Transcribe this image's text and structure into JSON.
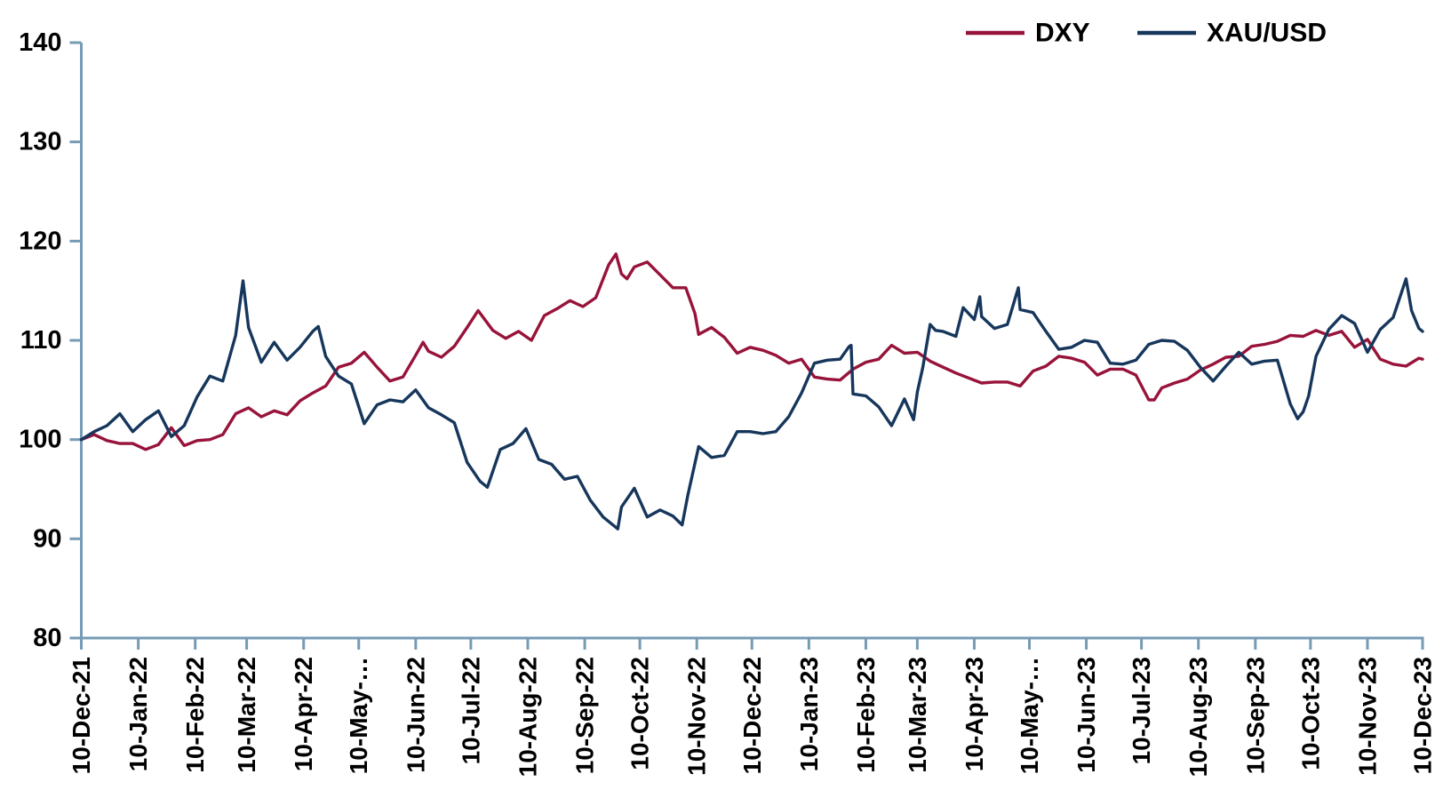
{
  "chart_data": {
    "type": "line",
    "title": "",
    "xlabel": "",
    "ylabel": "",
    "grid": false,
    "legend_position": "top-right",
    "axis_color": "#769BB5",
    "text_color": "#000000",
    "background_color": "#FFFFFF",
    "y_axis": {
      "ylim": [
        80,
        140
      ],
      "ticks": [
        80,
        90,
        100,
        110,
        120,
        130,
        140
      ]
    },
    "x_axis": {
      "unit": "days since 10-Dec-21",
      "range_days": [
        0,
        730
      ],
      "tick_days": [
        0,
        31,
        62,
        90,
        121,
        151,
        182,
        212,
        243,
        274,
        304,
        335,
        365,
        396,
        427,
        455,
        486,
        516,
        547,
        577,
        608,
        639,
        669,
        700,
        730
      ],
      "tick_labels": [
        "10-Dec-21",
        "10-Jan-22",
        "10-Feb-22",
        "10-Mar-22",
        "10-Apr-22",
        "10-May-…",
        "10-Jun-22",
        "10-Jul-22",
        "10-Aug-22",
        "10-Sep-22",
        "10-Oct-22",
        "10-Nov-22",
        "10-Dec-22",
        "10-Jan-23",
        "10-Feb-23",
        "10-Mar-23",
        "10-Apr-23",
        "10-May-…",
        "10-Jun-23",
        "10-Jul-23",
        "10-Aug-23",
        "10-Sep-23",
        "10-Oct-23",
        "10-Nov-23",
        "10-Dec-23"
      ]
    },
    "series": [
      {
        "name": "DXY",
        "color": "#98133A",
        "points": [
          [
            0,
            100.0
          ],
          [
            7,
            100.5
          ],
          [
            14,
            99.9
          ],
          [
            21,
            99.6
          ],
          [
            28,
            99.6
          ],
          [
            35,
            99.0
          ],
          [
            42,
            99.5
          ],
          [
            49,
            101.2
          ],
          [
            56,
            99.4
          ],
          [
            63,
            99.9
          ],
          [
            70,
            100.0
          ],
          [
            77,
            100.5
          ],
          [
            84,
            102.6
          ],
          [
            91,
            103.2
          ],
          [
            98,
            102.3
          ],
          [
            105,
            102.9
          ],
          [
            112,
            102.5
          ],
          [
            119,
            103.9
          ],
          [
            126,
            104.7
          ],
          [
            133,
            105.4
          ],
          [
            140,
            107.3
          ],
          [
            147,
            107.7
          ],
          [
            154,
            108.8
          ],
          [
            161,
            107.3
          ],
          [
            168,
            105.9
          ],
          [
            175,
            106.3
          ],
          [
            182,
            108.5
          ],
          [
            186,
            109.8
          ],
          [
            189,
            108.9
          ],
          [
            196,
            108.3
          ],
          [
            203,
            109.4
          ],
          [
            210,
            111.3
          ],
          [
            216,
            113.0
          ],
          [
            224,
            111.0
          ],
          [
            231,
            110.2
          ],
          [
            238,
            110.9
          ],
          [
            245,
            110.0
          ],
          [
            252,
            112.5
          ],
          [
            259,
            113.2
          ],
          [
            266,
            114.0
          ],
          [
            273,
            113.4
          ],
          [
            280,
            114.3
          ],
          [
            287,
            117.6
          ],
          [
            291,
            118.7
          ],
          [
            294,
            116.7
          ],
          [
            297,
            116.2
          ],
          [
            301,
            117.4
          ],
          [
            308,
            117.9
          ],
          [
            315,
            116.6
          ],
          [
            322,
            115.3
          ],
          [
            329,
            115.3
          ],
          [
            334,
            112.7
          ],
          [
            336,
            110.6
          ],
          [
            343,
            111.3
          ],
          [
            350,
            110.3
          ],
          [
            357,
            108.7
          ],
          [
            364,
            109.3
          ],
          [
            371,
            109.0
          ],
          [
            378,
            108.5
          ],
          [
            385,
            107.7
          ],
          [
            392,
            108.1
          ],
          [
            399,
            106.3
          ],
          [
            406,
            106.1
          ],
          [
            413,
            106.0
          ],
          [
            420,
            107.1
          ],
          [
            427,
            107.8
          ],
          [
            434,
            108.1
          ],
          [
            441,
            109.5
          ],
          [
            448,
            108.7
          ],
          [
            455,
            108.8
          ],
          [
            462,
            107.9
          ],
          [
            469,
            107.3
          ],
          [
            476,
            106.7
          ],
          [
            483,
            106.2
          ],
          [
            490,
            105.7
          ],
          [
            497,
            105.8
          ],
          [
            504,
            105.8
          ],
          [
            511,
            105.4
          ],
          [
            518,
            106.9
          ],
          [
            525,
            107.4
          ],
          [
            532,
            108.4
          ],
          [
            539,
            108.2
          ],
          [
            546,
            107.8
          ],
          [
            553,
            106.5
          ],
          [
            560,
            107.1
          ],
          [
            567,
            107.1
          ],
          [
            574,
            106.5
          ],
          [
            581,
            104.0
          ],
          [
            584,
            104.0
          ],
          [
            588,
            105.2
          ],
          [
            595,
            105.7
          ],
          [
            602,
            106.1
          ],
          [
            609,
            107.0
          ],
          [
            616,
            107.6
          ],
          [
            623,
            108.3
          ],
          [
            630,
            108.4
          ],
          [
            637,
            109.4
          ],
          [
            644,
            109.6
          ],
          [
            651,
            109.9
          ],
          [
            658,
            110.5
          ],
          [
            665,
            110.4
          ],
          [
            672,
            111.0
          ],
          [
            679,
            110.5
          ],
          [
            686,
            110.9
          ],
          [
            693,
            109.3
          ],
          [
            700,
            110.1
          ],
          [
            707,
            108.1
          ],
          [
            714,
            107.6
          ],
          [
            721,
            107.4
          ],
          [
            728,
            108.2
          ],
          [
            730,
            108.1
          ]
        ]
      },
      {
        "name": "XAU/USD",
        "color": "#16365C",
        "points": [
          [
            0,
            100.0
          ],
          [
            7,
            100.8
          ],
          [
            14,
            101.4
          ],
          [
            21,
            102.6
          ],
          [
            28,
            100.8
          ],
          [
            35,
            102.0
          ],
          [
            42,
            102.9
          ],
          [
            49,
            100.3
          ],
          [
            56,
            101.4
          ],
          [
            63,
            104.3
          ],
          [
            70,
            106.4
          ],
          [
            77,
            105.9
          ],
          [
            84,
            110.5
          ],
          [
            88,
            116.0
          ],
          [
            91,
            111.3
          ],
          [
            98,
            107.8
          ],
          [
            105,
            109.8
          ],
          [
            112,
            108.0
          ],
          [
            119,
            109.3
          ],
          [
            126,
            110.9
          ],
          [
            129,
            111.4
          ],
          [
            133,
            108.4
          ],
          [
            140,
            106.4
          ],
          [
            147,
            105.6
          ],
          [
            154,
            101.6
          ],
          [
            161,
            103.5
          ],
          [
            168,
            104.0
          ],
          [
            175,
            103.8
          ],
          [
            182,
            105.0
          ],
          [
            189,
            103.2
          ],
          [
            196,
            102.5
          ],
          [
            203,
            101.7
          ],
          [
            210,
            97.7
          ],
          [
            217,
            95.8
          ],
          [
            221,
            95.2
          ],
          [
            228,
            99.0
          ],
          [
            235,
            99.6
          ],
          [
            242,
            101.1
          ],
          [
            249,
            98.0
          ],
          [
            256,
            97.5
          ],
          [
            263,
            96.0
          ],
          [
            270,
            96.3
          ],
          [
            277,
            93.9
          ],
          [
            284,
            92.2
          ],
          [
            292,
            91.0
          ],
          [
            294,
            93.2
          ],
          [
            301,
            95.1
          ],
          [
            308,
            92.2
          ],
          [
            315,
            92.9
          ],
          [
            322,
            92.3
          ],
          [
            327,
            91.4
          ],
          [
            330,
            94.3
          ],
          [
            336,
            99.3
          ],
          [
            343,
            98.2
          ],
          [
            350,
            98.4
          ],
          [
            357,
            100.8
          ],
          [
            364,
            100.8
          ],
          [
            371,
            100.6
          ],
          [
            378,
            100.8
          ],
          [
            385,
            102.3
          ],
          [
            392,
            104.7
          ],
          [
            399,
            107.7
          ],
          [
            406,
            108.0
          ],
          [
            413,
            108.1
          ],
          [
            418,
            109.4
          ],
          [
            419,
            109.5
          ],
          [
            420,
            104.6
          ],
          [
            427,
            104.4
          ],
          [
            434,
            103.3
          ],
          [
            441,
            101.4
          ],
          [
            448,
            104.1
          ],
          [
            453,
            102.0
          ],
          [
            455,
            104.8
          ],
          [
            458,
            107.3
          ],
          [
            462,
            111.6
          ],
          [
            465,
            111.0
          ],
          [
            469,
            110.9
          ],
          [
            476,
            110.4
          ],
          [
            480,
            113.3
          ],
          [
            486,
            112.1
          ],
          [
            489,
            114.4
          ],
          [
            490,
            112.4
          ],
          [
            497,
            111.2
          ],
          [
            504,
            111.6
          ],
          [
            510,
            115.3
          ],
          [
            511,
            113.1
          ],
          [
            518,
            112.8
          ],
          [
            525,
            110.9
          ],
          [
            532,
            109.1
          ],
          [
            539,
            109.3
          ],
          [
            546,
            110.0
          ],
          [
            553,
            109.8
          ],
          [
            560,
            107.7
          ],
          [
            567,
            107.6
          ],
          [
            574,
            108.0
          ],
          [
            581,
            109.6
          ],
          [
            588,
            110.0
          ],
          [
            595,
            109.9
          ],
          [
            602,
            109.0
          ],
          [
            609,
            107.3
          ],
          [
            616,
            105.9
          ],
          [
            623,
            107.4
          ],
          [
            630,
            108.8
          ],
          [
            637,
            107.6
          ],
          [
            644,
            107.9
          ],
          [
            651,
            108.0
          ],
          [
            658,
            103.6
          ],
          [
            662,
            102.1
          ],
          [
            665,
            102.8
          ],
          [
            668,
            104.4
          ],
          [
            672,
            108.4
          ],
          [
            679,
            111.1
          ],
          [
            686,
            112.5
          ],
          [
            693,
            111.7
          ],
          [
            700,
            108.8
          ],
          [
            707,
            111.1
          ],
          [
            714,
            112.3
          ],
          [
            721,
            116.2
          ],
          [
            724,
            113.0
          ],
          [
            728,
            111.2
          ],
          [
            730,
            110.9
          ]
        ]
      }
    ]
  }
}
